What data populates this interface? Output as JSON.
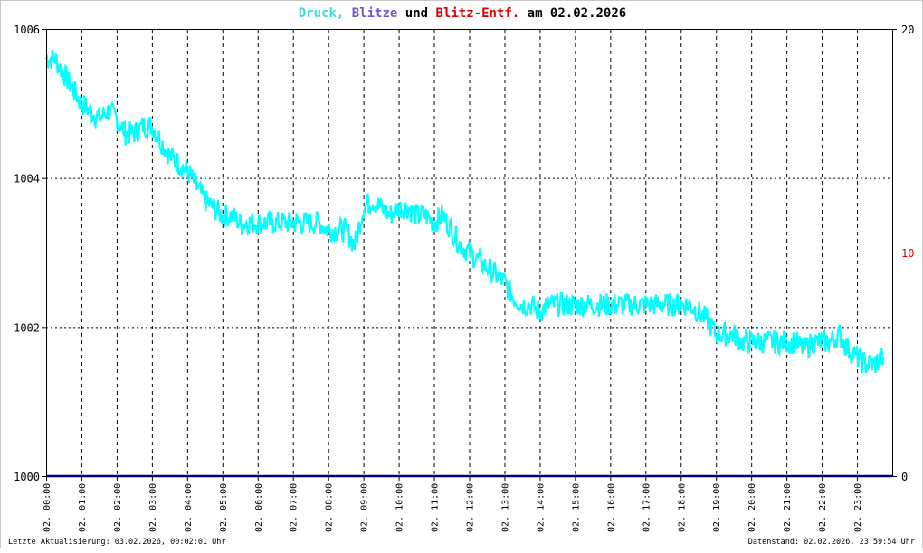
{
  "chart_data": {
    "type": "line",
    "title_parts": [
      {
        "text": "Druck,",
        "color": "#33dddd"
      },
      {
        "text": "Blitze",
        "color": "#6a5acd"
      },
      {
        "text": "und",
        "color": "#000000"
      },
      {
        "text": "Blitz-Entf.",
        "color": "#dd0000"
      },
      {
        "text": "am 02.02.2026",
        "color": "#000000"
      }
    ],
    "y_left": {
      "min": 1000,
      "max": 1006,
      "ticks": [
        "1000",
        "1002",
        "1004",
        "1006"
      ]
    },
    "y_right": {
      "min": 0,
      "max": 20,
      "ticks": [
        "0",
        "10",
        "20"
      ],
      "color_ticks": [
        "#000000",
        "#dd0000",
        "#000000"
      ]
    },
    "x_ticks": [
      "02. 00:00",
      "02. 01:00",
      "02. 02:00",
      "02. 03:00",
      "02. 04:00",
      "02. 05:00",
      "02. 06:00",
      "02. 07:00",
      "02. 08:00",
      "02. 09:00",
      "02. 10:00",
      "02. 11:00",
      "02. 12:00",
      "02. 13:00",
      "02. 14:00",
      "02. 15:00",
      "02. 16:00",
      "02. 17:00",
      "02. 18:00",
      "02. 19:00",
      "02. 20:00",
      "02. 21:00",
      "02. 22:00",
      "02. 23:00"
    ],
    "grid": true,
    "series": [
      {
        "name": "Druck",
        "color": "#00ffff",
        "axis": "left",
        "hours": [
          0.0,
          0.25,
          0.5,
          0.75,
          1.0,
          1.25,
          1.5,
          1.75,
          2.0,
          2.25,
          2.5,
          2.75,
          3.0,
          3.25,
          3.5,
          3.75,
          4.0,
          4.25,
          4.5,
          4.75,
          5.0,
          5.25,
          5.5,
          5.75,
          6.0,
          6.25,
          6.5,
          6.75,
          7.0,
          7.25,
          7.5,
          7.75,
          8.0,
          8.25,
          8.5,
          8.75,
          9.0,
          9.25,
          9.5,
          9.75,
          10.0,
          10.25,
          10.5,
          10.75,
          11.0,
          11.25,
          11.5,
          11.75,
          12.0,
          12.25,
          12.5,
          12.75,
          13.0,
          13.25,
          13.5,
          13.75,
          14.0,
          14.25,
          14.5,
          14.75,
          15.0,
          15.25,
          15.5,
          15.75,
          16.0,
          16.25,
          16.5,
          16.75,
          17.0,
          17.25,
          17.5,
          17.75,
          18.0,
          18.25,
          18.5,
          18.75,
          19.0,
          19.25,
          19.5,
          19.75,
          20.0,
          20.25,
          20.5,
          20.75,
          21.0,
          21.25,
          21.5,
          21.75,
          22.0,
          22.25,
          22.5,
          22.75,
          23.0,
          23.25,
          23.5,
          23.75
        ],
        "values": [
          1005.6,
          1005.6,
          1005.4,
          1005.2,
          1005.0,
          1004.9,
          1004.8,
          1004.9,
          1004.8,
          1004.6,
          1004.6,
          1004.7,
          1004.7,
          1004.5,
          1004.3,
          1004.2,
          1004.1,
          1003.9,
          1003.7,
          1003.6,
          1003.5,
          1003.5,
          1003.4,
          1003.4,
          1003.4,
          1003.4,
          1003.4,
          1003.4,
          1003.4,
          1003.4,
          1003.4,
          1003.4,
          1003.3,
          1003.3,
          1003.3,
          1003.1,
          1003.6,
          1003.7,
          1003.6,
          1003.5,
          1003.6,
          1003.6,
          1003.5,
          1003.5,
          1003.4,
          1003.5,
          1003.3,
          1003.1,
          1003.0,
          1002.9,
          1002.8,
          1002.7,
          1002.6,
          1002.4,
          1002.3,
          1002.3,
          1002.2,
          1002.3,
          1002.3,
          1002.3,
          1002.3,
          1002.3,
          1002.3,
          1002.3,
          1002.3,
          1002.3,
          1002.3,
          1002.3,
          1002.3,
          1002.3,
          1002.3,
          1002.3,
          1002.3,
          1002.3,
          1002.2,
          1002.1,
          1001.9,
          1001.9,
          1001.9,
          1001.8,
          1001.8,
          1001.8,
          1001.8,
          1001.8,
          1001.8,
          1001.8,
          1001.7,
          1001.8,
          1001.8,
          1001.8,
          1001.9,
          1001.7,
          1001.6,
          1001.5,
          1001.5,
          1001.6
        ]
      },
      {
        "name": "Blitze",
        "color": "#000080",
        "axis": "right",
        "values": [
          0,
          0
        ]
      }
    ]
  },
  "footer": {
    "left": "Letzte Aktualisierung: 03.02.2026, 00:02:01 Uhr",
    "right": "Datenstand: 02.02.2026, 23:59:54 Uhr"
  }
}
